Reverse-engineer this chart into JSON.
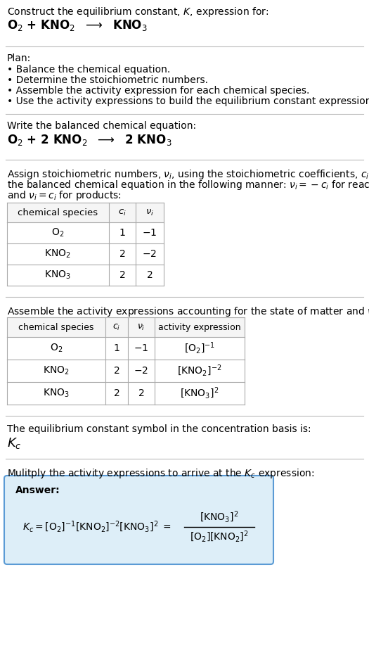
{
  "title_text": "Construct the equilibrium constant, $K$, expression for:",
  "reaction_unbalanced": "O$_2$ + KNO$_2$  $\\longrightarrow$  KNO$_3$",
  "plan_header": "Plan:",
  "plan_bullets": [
    "• Balance the chemical equation.",
    "• Determine the stoichiometric numbers.",
    "• Assemble the activity expression for each chemical species.",
    "• Use the activity expressions to build the equilibrium constant expression."
  ],
  "balanced_header": "Write the balanced chemical equation:",
  "reaction_balanced": "O$_2$ + 2 KNO$_2$  $\\longrightarrow$  2 KNO$_3$",
  "stoich_lines": [
    "Assign stoichiometric numbers, $\\nu_i$, using the stoichiometric coefficients, $c_i$, from",
    "the balanced chemical equation in the following manner: $\\nu_i = -c_i$ for reactants",
    "and $\\nu_i = c_i$ for products:"
  ],
  "table1_rows": [
    [
      "O$_2$",
      "1",
      "$-1$"
    ],
    [
      "KNO$_2$",
      "2",
      "$-2$"
    ],
    [
      "KNO$_3$",
      "2",
      "2"
    ]
  ],
  "activity_header": "Assemble the activity expressions accounting for the state of matter and $\\nu_i$:",
  "table2_rows": [
    [
      "O$_2$",
      "1",
      "$-1$",
      "$[\\mathrm{O_2}]^{-1}$"
    ],
    [
      "KNO$_2$",
      "2",
      "$-2$",
      "$[\\mathrm{KNO_2}]^{-2}$"
    ],
    [
      "KNO$_3$",
      "2",
      "2",
      "$[\\mathrm{KNO_3}]^{2}$"
    ]
  ],
  "kc_symbol_text": "The equilibrium constant symbol in the concentration basis is:",
  "multiply_text": "Mulitply the activity expressions to arrive at the $K_c$ expression:",
  "bg_color": "#ffffff",
  "table_bg": "#f5f5f5",
  "table_border": "#aaaaaa",
  "answer_box_color": "#ddeef8",
  "answer_box_border": "#5b9bd5",
  "line_color": "#bbbbbb"
}
